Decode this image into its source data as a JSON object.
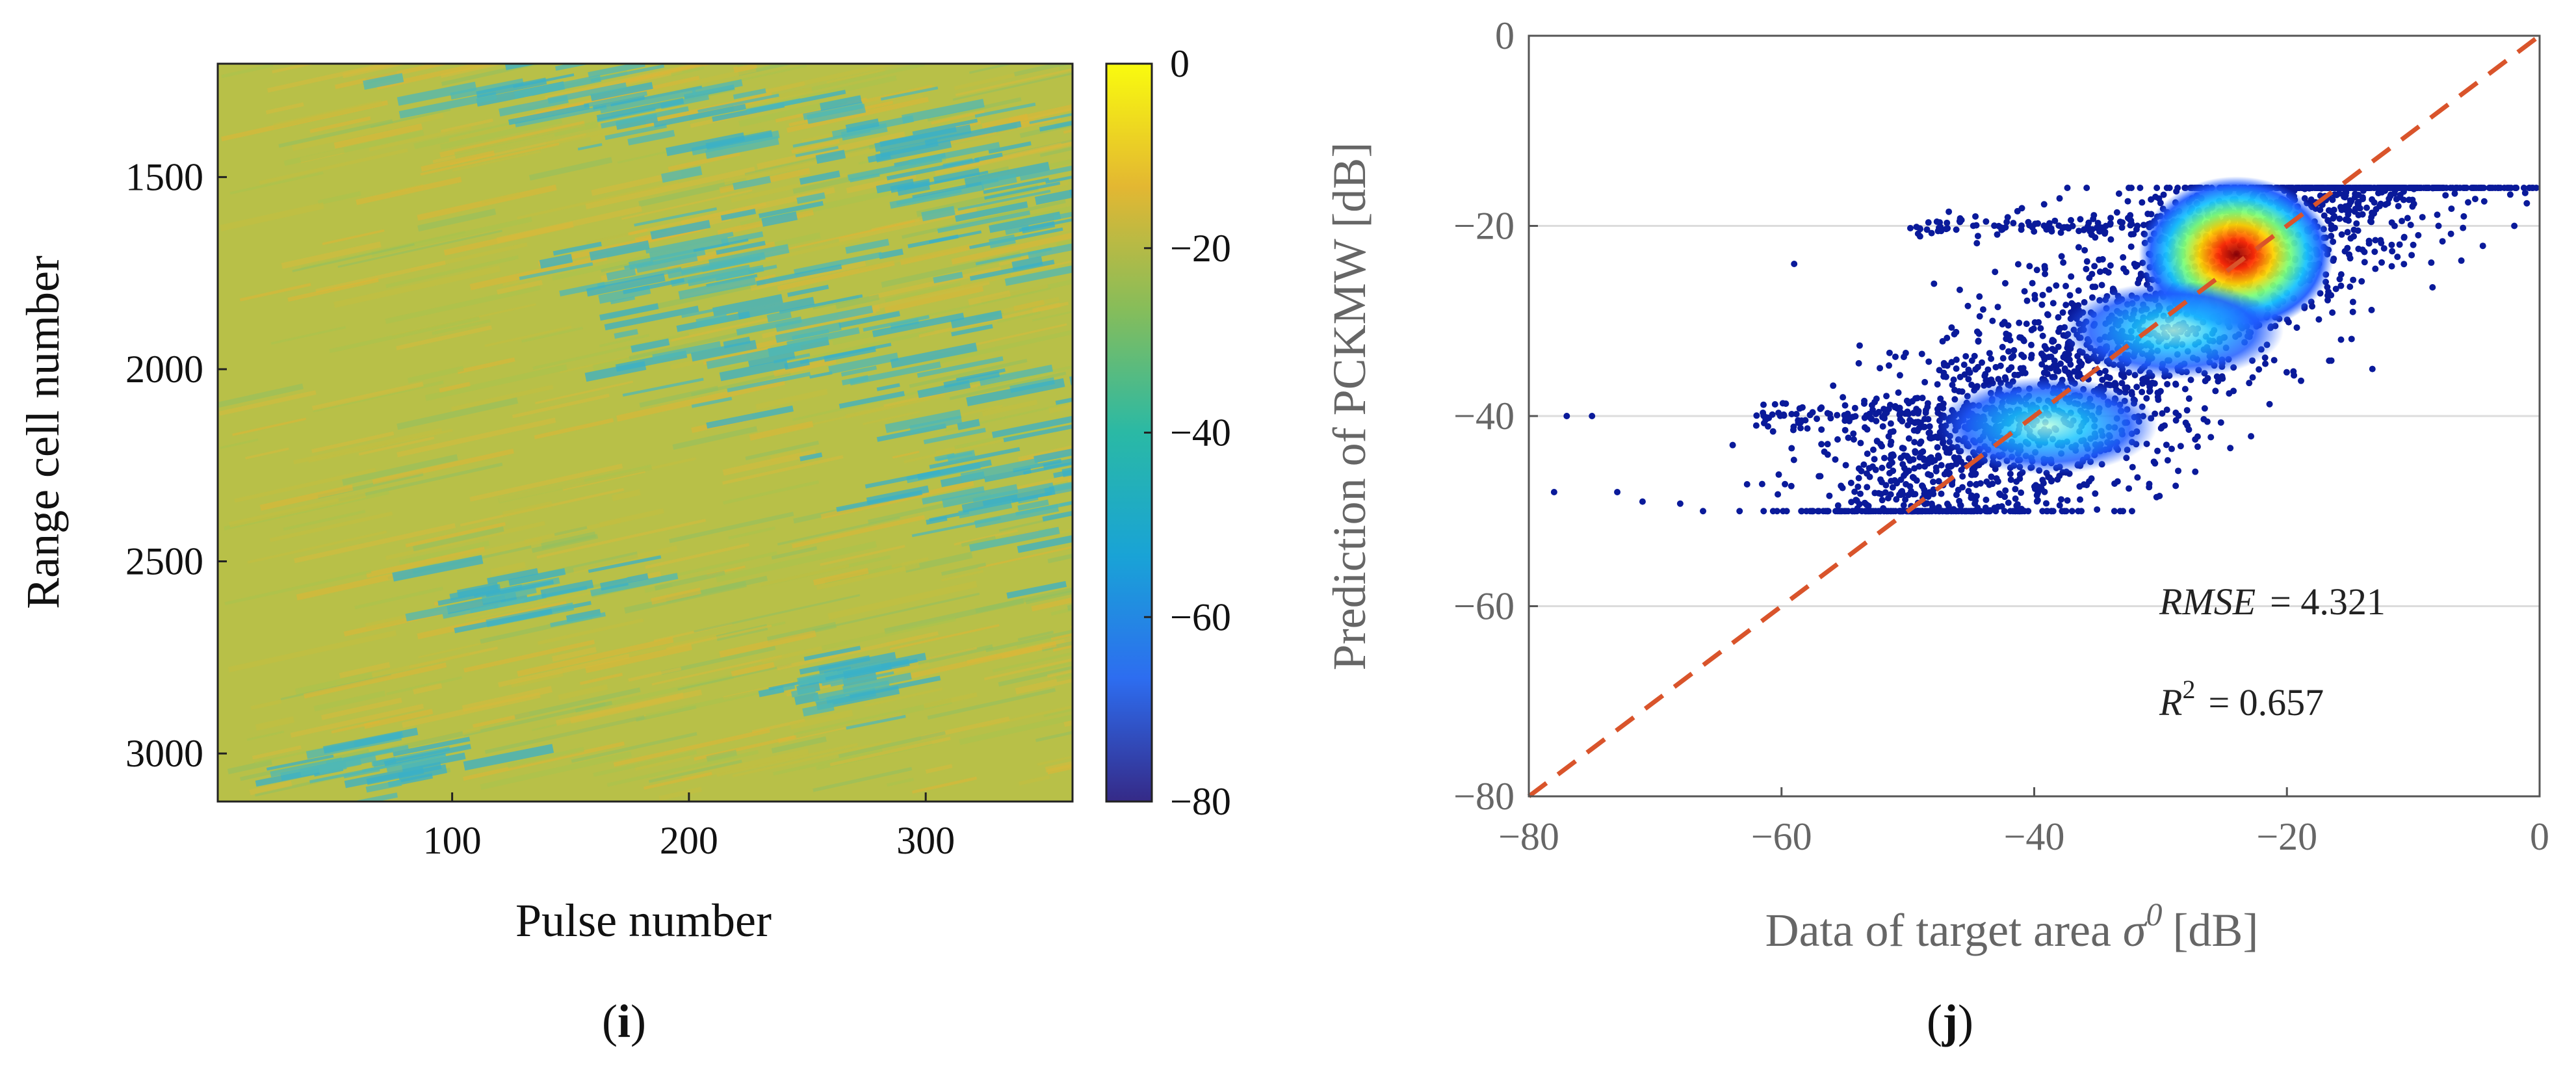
{
  "chart_data": [
    {
      "type": "heatmap",
      "panel_label": "(i)",
      "xlabel": "Pulse number",
      "ylabel": "Range cell number",
      "xlim": [
        1,
        362
      ],
      "ylim": [
        1205,
        3125
      ],
      "y_reversed": true,
      "x_ticks": [
        100,
        200,
        300
      ],
      "y_ticks": [
        1500,
        2000,
        2500,
        3000
      ],
      "colorbar": {
        "range": [
          -80,
          0
        ],
        "ticks": [
          0,
          -20,
          -40,
          -60,
          -80
        ],
        "tick_labels": [
          "0",
          "−20",
          "−40",
          "−60",
          "−80"
        ],
        "colormap": [
          "#352a87",
          "#2d6df0",
          "#19a3d6",
          "#2ab9a5",
          "#86bd5a",
          "#e3b732",
          "#f9fb0e"
        ]
      },
      "background_level_db": -20,
      "low_regions_db": -40
    },
    {
      "type": "scatter",
      "panel_label": "(j)",
      "xlabel": "Data of target area σ⁰ [dB]",
      "xlabel_text": "Data of target area",
      "xlabel_symbol": "σ",
      "xlabel_sup": "0",
      "xlabel_unit": "[dB]",
      "ylabel": "Prediction of PCKMW [dB]",
      "xlim": [
        -80,
        0
      ],
      "ylim": [
        -80,
        0
      ],
      "x_ticks": [
        -80,
        -60,
        -40,
        -20,
        0
      ],
      "y_ticks": [
        -80,
        -60,
        -40,
        -20,
        0
      ],
      "x_tick_labels": [
        "−80",
        "−60",
        "−40",
        "−20",
        "0"
      ],
      "y_tick_labels": [
        "−80",
        "−60",
        "−40",
        "−20",
        "0"
      ],
      "grid": "horizontal",
      "reference_line": {
        "from": [
          -80,
          -80
        ],
        "to": [
          0,
          0
        ],
        "style": "dashed",
        "color": "#d9542b"
      },
      "density_peaks": [
        {
          "x": -24,
          "y": -23,
          "weight": 1.0
        },
        {
          "x": -29,
          "y": -31,
          "weight": 0.45
        },
        {
          "x": -39,
          "y": -41,
          "weight": 0.4
        }
      ],
      "annotations": {
        "rmse_label": "RMSE",
        "rmse_value": "= 4.321",
        "r2_label": "R",
        "r2_sup": "2",
        "r2_value": "= 0.657"
      },
      "colors": {
        "low": "#0a1a9a",
        "mid": "#19c4ff",
        "high": "#ff2a00"
      }
    }
  ]
}
